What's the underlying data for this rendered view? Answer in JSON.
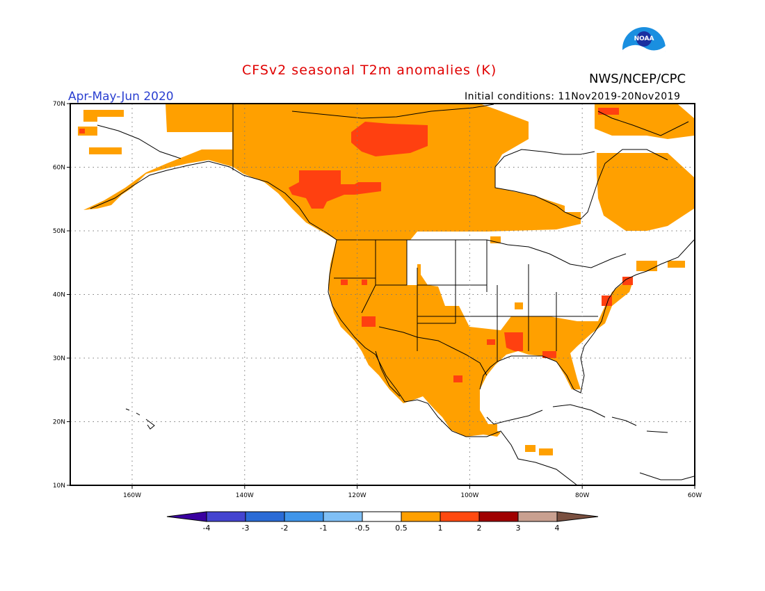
{
  "title": "CFSv2 seasonal T2m anomalies (K)",
  "agency": "NWS/NCEP/CPC",
  "season": "Apr-May-Jun 2020",
  "initial_conditions": "Initial conditions: 11Nov2019-20Nov2019",
  "logo_text": "NOAA",
  "logo_icon": "noaa-logo-icon",
  "map": {
    "lat_labels": [
      "70N",
      "60N",
      "50N",
      "40N",
      "30N",
      "20N",
      "10N"
    ],
    "lat_values": [
      70,
      60,
      50,
      40,
      30,
      20,
      10
    ],
    "lon_labels": [
      "160W",
      "140W",
      "120W",
      "100W",
      "80W",
      "60W"
    ],
    "lon_values": [
      -160,
      -140,
      -120,
      -100,
      -80,
      -60
    ],
    "lon_range": [
      -171,
      -60
    ],
    "lat_range": [
      10,
      70
    ],
    "gridlines": true
  },
  "colorbar": {
    "tick_labels": [
      "-4",
      "-3",
      "-2",
      "-1",
      "-0.5",
      "0.5",
      "1",
      "2",
      "3",
      "4"
    ],
    "colors": [
      "#3a00a0",
      "#4444d0",
      "#2a6bd6",
      "#3f95ea",
      "#7fbff5",
      "#ffffff",
      "#ffa000",
      "#ff4a10",
      "#a00000",
      "#c9a090",
      "#7a5040"
    ]
  },
  "anomaly_colors": {
    "light": "#ffa000",
    "strong": "#ff4010"
  }
}
